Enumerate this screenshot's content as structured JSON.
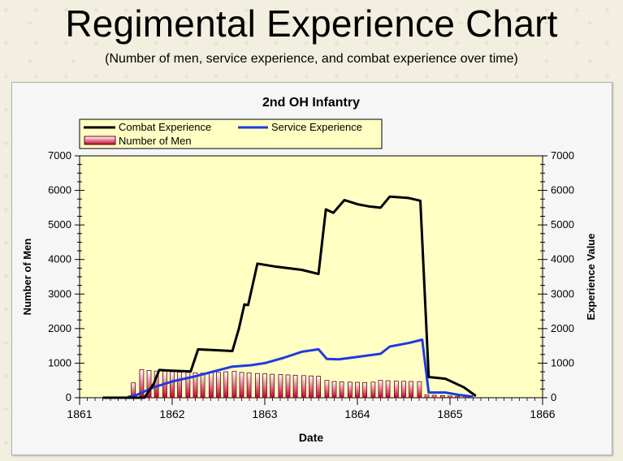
{
  "page": {
    "title": "Regimental Experience Chart",
    "subtitle": "(Number of men, service experience, and combat experience over time)"
  },
  "colors": {
    "plot_bg": "#ffffc4",
    "combat": "#000000",
    "service": "#1f3bdc",
    "bar_fill_top": "#ffffff",
    "bar_fill_bottom": "#c4002a",
    "bar_stroke": "#6a0012"
  },
  "chart_data": {
    "type": "bar",
    "title": "2nd OH Infantry",
    "xlabel": "Date",
    "ylabel": "Number of Men",
    "y2label": "Experience Value",
    "xlim": [
      1861,
      1866
    ],
    "ylim": [
      0,
      7000
    ],
    "y2lim": [
      0,
      7000
    ],
    "x_ticks": [
      "1861",
      "1862",
      "1863",
      "1864",
      "1865",
      "1866"
    ],
    "y_ticks": [
      "0",
      "1000",
      "2000",
      "3000",
      "4000",
      "5000",
      "6000",
      "7000"
    ],
    "y2_ticks": [
      "0",
      "1000",
      "2000",
      "3000",
      "4000",
      "5000",
      "6000",
      "7000"
    ],
    "legend_position": "top-left",
    "grid": false,
    "series": [
      {
        "name": "Combat Experience",
        "type": "line",
        "axis": "right",
        "x": [
          1861.25,
          1861.7,
          1861.75,
          1861.8,
          1861.86,
          1862.0,
          1862.2,
          1862.28,
          1862.65,
          1862.72,
          1862.78,
          1862.82,
          1862.92,
          1863.1,
          1863.4,
          1863.58,
          1863.66,
          1863.74,
          1863.86,
          1864.0,
          1864.12,
          1864.25,
          1864.35,
          1864.55,
          1864.68,
          1864.77,
          1864.95,
          1865.15,
          1865.28
        ],
        "y": [
          0,
          0,
          200,
          400,
          800,
          780,
          760,
          1400,
          1350,
          2000,
          2700,
          2680,
          3880,
          3800,
          3700,
          3580,
          5450,
          5350,
          5720,
          5600,
          5540,
          5500,
          5820,
          5780,
          5700,
          600,
          550,
          300,
          50
        ]
      },
      {
        "name": "Service Experience",
        "type": "line",
        "axis": "right",
        "x": [
          1861.52,
          1861.6,
          1861.8,
          1862.0,
          1862.25,
          1862.45,
          1862.65,
          1862.85,
          1863.0,
          1863.2,
          1863.4,
          1863.58,
          1863.67,
          1863.8,
          1864.0,
          1864.25,
          1864.35,
          1864.55,
          1864.7,
          1864.77,
          1864.95,
          1865.1,
          1865.25
        ],
        "y": [
          20,
          60,
          300,
          470,
          620,
          760,
          900,
          940,
          1000,
          1150,
          1330,
          1400,
          1120,
          1110,
          1180,
          1270,
          1480,
          1580,
          1680,
          150,
          150,
          80,
          30
        ]
      },
      {
        "name": "Number of Men",
        "type": "bar",
        "axis": "left",
        "x": [
          1861.58,
          1861.67,
          1861.75,
          1861.83,
          1861.92,
          1862.0,
          1862.08,
          1862.17,
          1862.25,
          1862.33,
          1862.42,
          1862.5,
          1862.58,
          1862.67,
          1862.75,
          1862.83,
          1862.92,
          1863.0,
          1863.08,
          1863.17,
          1863.25,
          1863.33,
          1863.42,
          1863.5,
          1863.58,
          1863.67,
          1863.75,
          1863.83,
          1863.92,
          1864.0,
          1864.08,
          1864.17,
          1864.25,
          1864.33,
          1864.42,
          1864.5,
          1864.58,
          1864.67,
          1864.75,
          1864.83,
          1864.92,
          1865.0,
          1865.08,
          1865.17
        ],
        "values": [
          430,
          810,
          790,
          770,
          760,
          750,
          740,
          730,
          720,
          710,
          720,
          730,
          750,
          760,
          730,
          720,
          700,
          690,
          680,
          670,
          660,
          650,
          640,
          630,
          620,
          500,
          470,
          460,
          450,
          445,
          440,
          450,
          500,
          490,
          480,
          475,
          470,
          465,
          80,
          70,
          60,
          50,
          40,
          30
        ]
      }
    ]
  }
}
